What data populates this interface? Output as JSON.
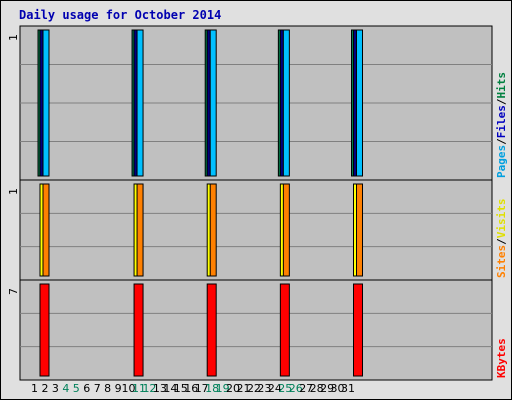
{
  "title": "Daily usage for October 2014",
  "days": [
    "1",
    "2",
    "3",
    "4",
    "5",
    "6",
    "7",
    "8",
    "9",
    "10",
    "11",
    "12",
    "13",
    "14",
    "15",
    "16",
    "17",
    "18",
    "19",
    "20",
    "21",
    "22",
    "23",
    "24",
    "25",
    "26",
    "27",
    "28",
    "29",
    "30",
    "31"
  ],
  "weekend_days": [
    4,
    5,
    11,
    12,
    18,
    19,
    25,
    26
  ],
  "panels": [
    {
      "id": "hits",
      "max_label": "1",
      "legend": [
        {
          "text": "Pages",
          "color": "#00a0e0"
        },
        {
          "text": "/",
          "color": "#000000"
        },
        {
          "text": "Files",
          "color": "#0000c0"
        },
        {
          "text": "/",
          "color": "#000000"
        },
        {
          "text": "Hits",
          "color": "#008040"
        }
      ]
    },
    {
      "id": "visits",
      "max_label": "1",
      "legend": [
        {
          "text": "Sites",
          "color": "#ff8000"
        },
        {
          "text": "/",
          "color": "#000000"
        },
        {
          "text": "Visits",
          "color": "#e0e000"
        }
      ]
    },
    {
      "id": "kbytes",
      "max_label": "7",
      "legend": [
        {
          "text": "KBytes",
          "color": "#ff0000"
        }
      ]
    }
  ],
  "colors": {
    "hits": "#00804a",
    "files": "#000080",
    "pages": "#00c0ff",
    "visits": "#ffff00",
    "sites": "#ff8000",
    "kbytes": "#ff0000",
    "weekend": "#00805a",
    "weekday": "#000000"
  },
  "chart_data": [
    {
      "type": "bar",
      "panel": "hits",
      "categories": [
        "1",
        "2",
        "3",
        "4",
        "5",
        "6",
        "7",
        "8",
        "9",
        "10",
        "11",
        "12",
        "13",
        "14",
        "15",
        "16",
        "17",
        "18",
        "19",
        "20",
        "21",
        "22",
        "23",
        "24",
        "25",
        "26",
        "27",
        "28",
        "29",
        "30",
        "31"
      ],
      "ylim": [
        0,
        1
      ],
      "series": [
        {
          "name": "Hits",
          "values": [
            1,
            0,
            0,
            0,
            0,
            0,
            0,
            0,
            0,
            1,
            0,
            0,
            0,
            0,
            0,
            0,
            1,
            0,
            0,
            0,
            0,
            0,
            0,
            1,
            0,
            0,
            0,
            0,
            0,
            0,
            1
          ]
        },
        {
          "name": "Files",
          "values": [
            1,
            0,
            0,
            0,
            0,
            0,
            0,
            0,
            0,
            1,
            0,
            0,
            0,
            0,
            0,
            0,
            1,
            0,
            0,
            0,
            0,
            0,
            0,
            1,
            0,
            0,
            0,
            0,
            0,
            0,
            1
          ]
        },
        {
          "name": "Pages",
          "values": [
            1,
            0,
            0,
            0,
            0,
            0,
            0,
            0,
            0,
            1,
            0,
            0,
            0,
            0,
            0,
            0,
            1,
            0,
            0,
            0,
            0,
            0,
            0,
            1,
            0,
            0,
            0,
            0,
            0,
            0,
            1
          ]
        }
      ]
    },
    {
      "type": "bar",
      "panel": "visits",
      "categories": [
        "1",
        "2",
        "3",
        "4",
        "5",
        "6",
        "7",
        "8",
        "9",
        "10",
        "11",
        "12",
        "13",
        "14",
        "15",
        "16",
        "17",
        "18",
        "19",
        "20",
        "21",
        "22",
        "23",
        "24",
        "25",
        "26",
        "27",
        "28",
        "29",
        "30",
        "31"
      ],
      "ylim": [
        0,
        1
      ],
      "series": [
        {
          "name": "Visits",
          "values": [
            1,
            0,
            0,
            0,
            0,
            0,
            0,
            0,
            0,
            1,
            0,
            0,
            0,
            0,
            0,
            0,
            1,
            0,
            0,
            0,
            0,
            0,
            0,
            1,
            0,
            0,
            0,
            0,
            0,
            0,
            1
          ]
        },
        {
          "name": "Sites",
          "values": [
            1,
            0,
            0,
            0,
            0,
            0,
            0,
            0,
            0,
            1,
            0,
            0,
            0,
            0,
            0,
            0,
            1,
            0,
            0,
            0,
            0,
            0,
            0,
            1,
            0,
            0,
            0,
            0,
            0,
            0,
            1
          ]
        }
      ]
    },
    {
      "type": "bar",
      "panel": "kbytes",
      "categories": [
        "1",
        "2",
        "3",
        "4",
        "5",
        "6",
        "7",
        "8",
        "9",
        "10",
        "11",
        "12",
        "13",
        "14",
        "15",
        "16",
        "17",
        "18",
        "19",
        "20",
        "21",
        "22",
        "23",
        "24",
        "25",
        "26",
        "27",
        "28",
        "29",
        "30",
        "31"
      ],
      "ylim": [
        0,
        7
      ],
      "series": [
        {
          "name": "KBytes",
          "values": [
            7,
            0,
            0,
            0,
            0,
            0,
            0,
            0,
            0,
            7,
            0,
            0,
            0,
            0,
            0,
            0,
            7,
            0,
            0,
            0,
            0,
            0,
            0,
            7,
            0,
            0,
            0,
            0,
            0,
            0,
            7
          ]
        }
      ]
    }
  ]
}
